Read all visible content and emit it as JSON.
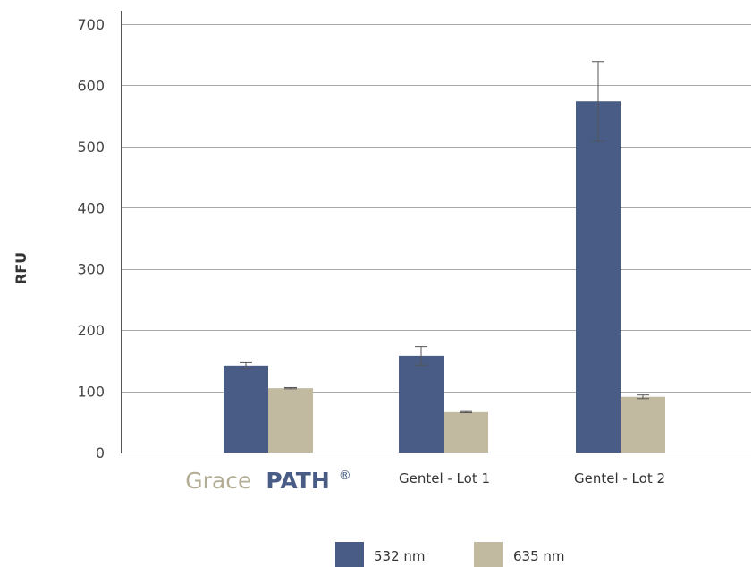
{
  "chart_data": {
    "type": "bar",
    "ylabel": "RFU",
    "ylim": [
      0,
      700
    ],
    "yticks": [
      0,
      100,
      200,
      300,
      400,
      500,
      600,
      700
    ],
    "grid": true,
    "legend_position": "bottom-center",
    "categories": [
      "Grace PATH®",
      "Gentel - Lot 1",
      "Gentel - Lot 2"
    ],
    "category_brand": {
      "word1": "Grace",
      "word2": "PATH",
      "mark": "®"
    },
    "series": [
      {
        "name": "532 nm",
        "color": "#485c86",
        "values": [
          142,
          158,
          574
        ],
        "errors": [
          5,
          15,
          65
        ]
      },
      {
        "name": "635 nm",
        "color": "#c1b9a0",
        "values": [
          105,
          66,
          91
        ],
        "errors": [
          1,
          1,
          3
        ]
      }
    ],
    "colors": {
      "brand_grace": "#b3ac94",
      "brand_path": "#485c86"
    }
  }
}
